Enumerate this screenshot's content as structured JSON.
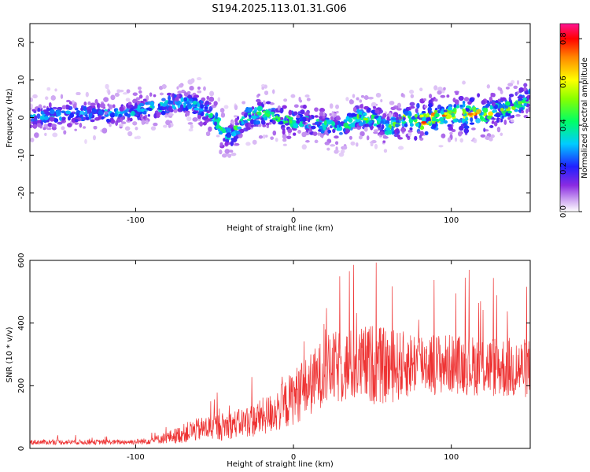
{
  "figure_title": "S194.2025.113.01.31.G06",
  "chart_data": [
    {
      "type": "heatmap",
      "title": "",
      "xlabel": "Height of straight line (km)",
      "ylabel": "Frequency (Hz)",
      "xlim": [
        -167,
        150
      ],
      "ylim": [
        -25,
        25
      ],
      "xticks": [
        -100,
        0,
        100
      ],
      "yticks": [
        -20,
        -10,
        0,
        10,
        20
      ],
      "grid": false,
      "colorbar": {
        "label": "Normalized spectral amplitude",
        "range": [
          0.0,
          0.87
        ],
        "ticks": [
          0.0,
          0.2,
          0.4,
          0.6,
          0.8
        ],
        "colormap": "rainbow"
      },
      "ridge": {
        "description_points_x": [
          -167,
          -140,
          -110,
          -85,
          -75,
          -60,
          -50,
          -45,
          -40,
          -30,
          -20,
          -10,
          0,
          10,
          20,
          30,
          40,
          50,
          55,
          60,
          70,
          80,
          90,
          100,
          110,
          120,
          130,
          140,
          150
        ],
        "peak_frequency_hz": [
          0,
          1,
          1,
          3,
          4,
          3,
          0,
          -4,
          -5,
          0,
          1,
          0,
          -1,
          -1,
          -2,
          -3,
          0,
          0,
          -1,
          -3,
          0,
          -1,
          0,
          1,
          1,
          1,
          2,
          3,
          5
        ],
        "peak_amplitude": [
          0.3,
          0.3,
          0.3,
          0.35,
          0.35,
          0.35,
          0.4,
          0.4,
          0.4,
          0.45,
          0.45,
          0.4,
          0.45,
          0.4,
          0.4,
          0.35,
          0.45,
          0.45,
          0.4,
          0.4,
          0.5,
          0.75,
          0.7,
          0.6,
          0.7,
          0.6,
          0.5,
          0.45,
          0.5
        ]
      }
    },
    {
      "type": "line",
      "title": "",
      "xlabel": "Height of straight line (km)",
      "ylabel": "SNR (10 * v/v)",
      "xlim": [
        -167,
        150
      ],
      "ylim": [
        0,
        600
      ],
      "xticks": [
        -100,
        0,
        100
      ],
      "yticks": [
        0,
        200,
        400,
        600
      ],
      "grid": false,
      "series": [
        {
          "color": "#ee3333",
          "x": [
            -167,
            -150,
            -130,
            -110,
            -95,
            -85,
            -75,
            -65,
            -55,
            -45,
            -35,
            -25,
            -15,
            -5,
            0,
            10,
            20,
            30,
            40,
            50,
            60,
            70,
            80,
            90,
            100,
            110,
            120,
            130,
            140,
            150
          ],
          "y_baseline": [
            20,
            20,
            20,
            20,
            22,
            30,
            40,
            55,
            65,
            70,
            80,
            90,
            110,
            140,
            165,
            200,
            250,
            260,
            265,
            270,
            260,
            265,
            280,
            270,
            270,
            265,
            265,
            260,
            255,
            255
          ],
          "y_spread": [
            8,
            8,
            8,
            8,
            10,
            15,
            25,
            35,
            40,
            45,
            45,
            55,
            65,
            80,
            90,
            100,
            110,
            120,
            120,
            130,
            120,
            110,
            100,
            100,
            95,
            95,
            100,
            100,
            100,
            95
          ]
        }
      ]
    }
  ]
}
